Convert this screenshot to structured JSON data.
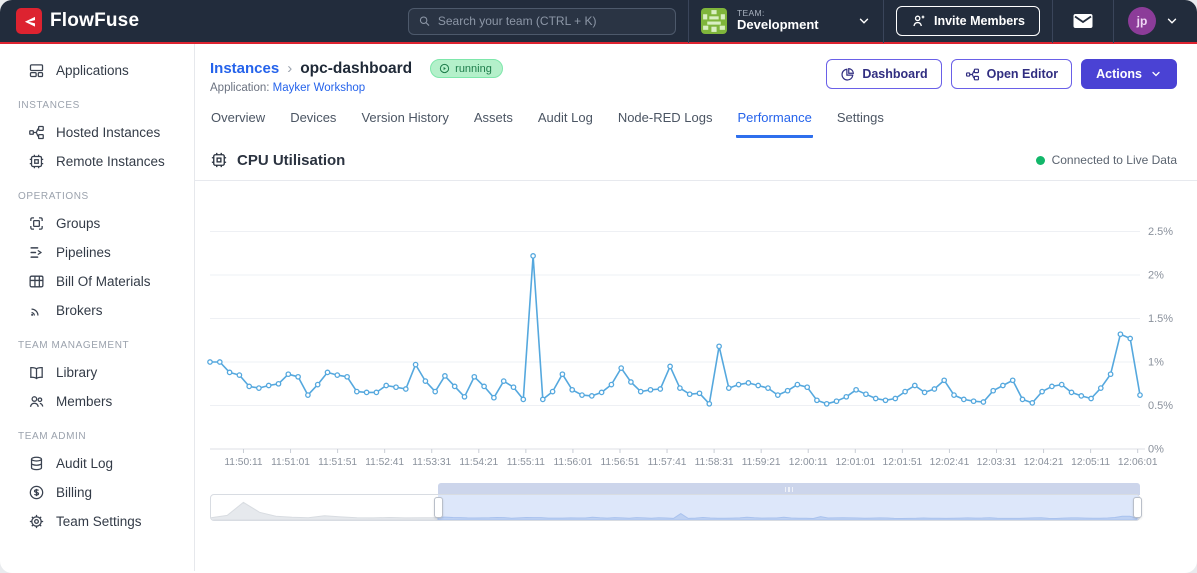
{
  "navbar": {
    "brand": "FlowFuse",
    "search_placeholder": "Search your team (CTRL + K)",
    "team_label": "TEAM:",
    "team_name": "Development",
    "invite_label": "Invite Members",
    "avatar_initials": "jp"
  },
  "sidebar": {
    "sections": [
      {
        "header": "",
        "items": [
          {
            "label": "Applications"
          }
        ]
      },
      {
        "header": "INSTANCES",
        "items": [
          {
            "label": "Hosted Instances"
          },
          {
            "label": "Remote Instances"
          }
        ]
      },
      {
        "header": "OPERATIONS",
        "items": [
          {
            "label": "Groups"
          },
          {
            "label": "Pipelines"
          },
          {
            "label": "Bill Of Materials"
          },
          {
            "label": "Brokers"
          }
        ]
      },
      {
        "header": "TEAM MANAGEMENT",
        "items": [
          {
            "label": "Library"
          },
          {
            "label": "Members"
          }
        ]
      },
      {
        "header": "TEAM ADMIN",
        "items": [
          {
            "label": "Audit Log"
          },
          {
            "label": "Billing"
          },
          {
            "label": "Team Settings"
          }
        ]
      }
    ]
  },
  "header": {
    "breadcrumb_parent": "Instances",
    "separator": "›",
    "instance_name": "opc-dashboard",
    "status_badge": "running",
    "application_label": "Application:",
    "application_name": "Mayker Workshop",
    "dashboard_label": "Dashboard",
    "open_editor_label": "Open Editor",
    "actions_label": "Actions"
  },
  "tabs": {
    "items": [
      "Overview",
      "Devices",
      "Version History",
      "Assets",
      "Audit Log",
      "Node-RED Logs",
      "Performance",
      "Settings"
    ],
    "active": "Performance"
  },
  "panel": {
    "title": "CPU Utilisation",
    "status": "Connected to Live Data",
    "status_color": "#12b76a"
  },
  "chart_data": {
    "type": "line",
    "title": "CPU Utilisation",
    "unit": "%",
    "line_color": "#55a8de",
    "grid": true,
    "legend": "none",
    "ylim": [
      0,
      2.95
    ],
    "y_tick_labels": [
      "0%",
      "0.5%",
      "1%",
      "1.5%",
      "2%",
      "2.5%"
    ],
    "x_labels": [
      "11:50:11",
      "11:51:01",
      "11:51:51",
      "11:52:41",
      "11:53:31",
      "11:54:21",
      "11:55:11",
      "11:56:01",
      "11:56:51",
      "11:57:41",
      "11:58:31",
      "11:59:21",
      "12:00:11",
      "12:01:01",
      "12:01:51",
      "12:02:41",
      "12:03:31",
      "12:04:21",
      "12:05:11",
      "12:06:01"
    ],
    "sample_interval_seconds": 10,
    "values": [
      1.0,
      1.0,
      0.88,
      0.85,
      0.72,
      0.7,
      0.73,
      0.75,
      0.86,
      0.83,
      0.62,
      0.74,
      0.88,
      0.85,
      0.83,
      0.66,
      0.65,
      0.65,
      0.73,
      0.71,
      0.69,
      0.97,
      0.78,
      0.66,
      0.84,
      0.72,
      0.6,
      0.83,
      0.72,
      0.59,
      0.78,
      0.71,
      0.57,
      2.22,
      0.57,
      0.66,
      0.86,
      0.68,
      0.62,
      0.61,
      0.65,
      0.74,
      0.93,
      0.77,
      0.66,
      0.68,
      0.69,
      0.95,
      0.7,
      0.63,
      0.64,
      0.52,
      1.18,
      0.7,
      0.74,
      0.76,
      0.73,
      0.7,
      0.62,
      0.67,
      0.74,
      0.71,
      0.56,
      0.52,
      0.55,
      0.6,
      0.68,
      0.63,
      0.58,
      0.56,
      0.58,
      0.66,
      0.73,
      0.65,
      0.69,
      0.79,
      0.62,
      0.57,
      0.55,
      0.54,
      0.67,
      0.73,
      0.79,
      0.57,
      0.53,
      0.66,
      0.72,
      0.74,
      0.65,
      0.61,
      0.58,
      0.7,
      0.86,
      1.32,
      1.27,
      0.62
    ],
    "navigator": {
      "selected_start_fraction": 0.245,
      "selected_end_fraction": 1.0,
      "lead_in_values": [
        0.3,
        0.6,
        2.3,
        1.0,
        0.5,
        0.35,
        0.3,
        0.55,
        0.4,
        0.3,
        0.28,
        0.32,
        0.28,
        0.3,
        0.3
      ]
    }
  }
}
